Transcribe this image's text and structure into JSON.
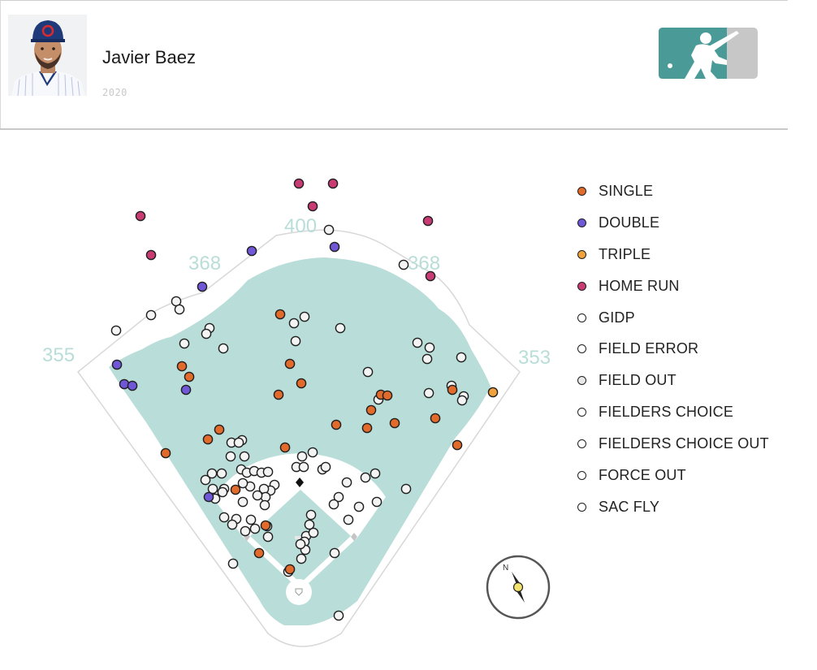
{
  "player": {
    "name": "Javier Baez",
    "season": "2020"
  },
  "colors": {
    "field": "#b9ddd8",
    "accent_logo": "#4a9a98",
    "dirt": "#ffffff",
    "fence": "#ffffff"
  },
  "legend": [
    {
      "label": "SINGLE",
      "color": "#e26b2b"
    },
    {
      "label": "DOUBLE",
      "color": "#7057d8"
    },
    {
      "label": "TRIPLE",
      "color": "#f0a33c"
    },
    {
      "label": "HOME RUN",
      "color": "#c83c73"
    },
    {
      "label": "GIDP",
      "color": "#ffffff"
    },
    {
      "label": "FIELD ERROR",
      "color": "#ffffff"
    },
    {
      "label": "FIELD OUT",
      "color": "#e8e8e8"
    },
    {
      "label": "FIELDERS CHOICE",
      "color": "#ffffff"
    },
    {
      "label": "FIELDERS CHOICE OUT",
      "color": "#ffffff"
    },
    {
      "label": "FORCE OUT",
      "color": "#ffffff"
    },
    {
      "label": "SAC FLY",
      "color": "#ffffff"
    }
  ],
  "chart_data": {
    "type": "scatter",
    "distance_labels": [
      "355",
      "368",
      "400",
      "368",
      "353"
    ],
    "compass_label": "N",
    "series": [
      {
        "name": "SINGLE",
        "color": "#e26b2b",
        "points": [
          [
            345,
            387
          ],
          [
            357,
            448
          ],
          [
            371,
            472
          ],
          [
            343,
            486
          ],
          [
            224,
            451
          ],
          [
            233,
            464
          ],
          [
            270,
            529
          ],
          [
            256,
            541
          ],
          [
            204,
            558
          ],
          [
            351,
            551
          ],
          [
            290,
            603
          ],
          [
            327,
            647
          ],
          [
            319,
            681
          ],
          [
            357,
            701
          ],
          [
            414,
            523
          ],
          [
            452,
            527
          ],
          [
            457,
            505
          ],
          [
            469,
            486
          ],
          [
            477,
            487
          ],
          [
            486,
            521
          ],
          [
            536,
            515
          ],
          [
            557,
            480
          ],
          [
            563,
            548
          ]
        ]
      },
      {
        "name": "DOUBLE",
        "color": "#7057d8",
        "points": [
          [
            310,
            309
          ],
          [
            412,
            304
          ],
          [
            249,
            353
          ],
          [
            144,
            449
          ],
          [
            153,
            473
          ],
          [
            163,
            475
          ],
          [
            229,
            480
          ],
          [
            257,
            612
          ]
        ]
      },
      {
        "name": "TRIPLE",
        "color": "#f0a33c",
        "points": [
          [
            607,
            483
          ]
        ]
      },
      {
        "name": "HOME RUN",
        "color": "#c83c73",
        "points": [
          [
            368,
            226
          ],
          [
            410,
            226
          ],
          [
            385,
            254
          ],
          [
            173,
            266
          ],
          [
            527,
            272
          ],
          [
            186,
            314
          ],
          [
            530,
            340
          ]
        ]
      },
      {
        "name": "OUTS",
        "color": "#f4f4f4",
        "points": [
          [
            405,
            283
          ],
          [
            497,
            326
          ],
          [
            217,
            371
          ],
          [
            221,
            381
          ],
          [
            186,
            388
          ],
          [
            143,
            407
          ],
          [
            362,
            398
          ],
          [
            375,
            390
          ],
          [
            419,
            404
          ],
          [
            258,
            404
          ],
          [
            254,
            411
          ],
          [
            364,
            420
          ],
          [
            227,
            423
          ],
          [
            275,
            429
          ],
          [
            514,
            422
          ],
          [
            529,
            428
          ],
          [
            526,
            442
          ],
          [
            568,
            440
          ],
          [
            453,
            458
          ],
          [
            556,
            475
          ],
          [
            571,
            488
          ],
          [
            569,
            493
          ],
          [
            528,
            484
          ],
          [
            466,
            492
          ],
          [
            298,
            542
          ],
          [
            285,
            545
          ],
          [
            294,
            545
          ],
          [
            301,
            562
          ],
          [
            284,
            562
          ],
          [
            372,
            562
          ],
          [
            385,
            557
          ],
          [
            365,
            575
          ],
          [
            374,
            575
          ],
          [
            397,
            578
          ],
          [
            401,
            575
          ],
          [
            273,
            583
          ],
          [
            297,
            578
          ],
          [
            304,
            582
          ],
          [
            313,
            580
          ],
          [
            322,
            582
          ],
          [
            330,
            581
          ],
          [
            261,
            583
          ],
          [
            338,
            597
          ],
          [
            333,
            604
          ],
          [
            325,
            602
          ],
          [
            327,
            612
          ],
          [
            317,
            610
          ],
          [
            308,
            599
          ],
          [
            276,
            602
          ],
          [
            263,
            607
          ],
          [
            265,
            614
          ],
          [
            253,
            591
          ],
          [
            299,
            595
          ],
          [
            262,
            602
          ],
          [
            274,
            606
          ],
          [
            299,
            618
          ],
          [
            326,
            622
          ],
          [
            450,
            588
          ],
          [
            462,
            583
          ],
          [
            427,
            594
          ],
          [
            417,
            612
          ],
          [
            411,
            621
          ],
          [
            442,
            624
          ],
          [
            464,
            618
          ],
          [
            500,
            602
          ],
          [
            429,
            640
          ],
          [
            276,
            637
          ],
          [
            291,
            639
          ],
          [
            286,
            646
          ],
          [
            309,
            640
          ],
          [
            302,
            654
          ],
          [
            329,
            648
          ],
          [
            330,
            661
          ],
          [
            314,
            651
          ],
          [
            383,
            634
          ],
          [
            381,
            646
          ],
          [
            377,
            660
          ],
          [
            375,
            667
          ],
          [
            386,
            656
          ],
          [
            376,
            677
          ],
          [
            371,
            688
          ],
          [
            370,
            670
          ],
          [
            412,
            681
          ],
          [
            355,
            704
          ],
          [
            287,
            694
          ],
          [
            417,
            758
          ]
        ]
      }
    ],
    "bases": [
      "home",
      "first",
      "second",
      "third"
    ]
  }
}
